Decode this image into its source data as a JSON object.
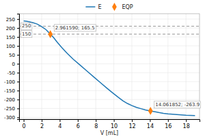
{
  "chart_data": {
    "type": "line",
    "x_label": "V [mL]",
    "xlim": [
      -0.5,
      19.5
    ],
    "ylim": [
      -310,
      280
    ],
    "xticks": [
      0,
      2,
      4,
      6,
      8,
      10,
      12,
      14,
      16,
      18
    ],
    "yticks": [
      -300,
      -250,
      -200,
      -150,
      -100,
      -50,
      0,
      50,
      100,
      150,
      200,
      250
    ],
    "grid": true,
    "legend": "top",
    "series": [
      {
        "name": "E",
        "type": "line",
        "x": [
          0.0,
          0.3,
          0.6,
          1.0,
          1.5,
          2.0,
          2.5,
          2.96159,
          3.3,
          3.7,
          4.2,
          4.8,
          5.5,
          6.2,
          7.0,
          7.8,
          8.5,
          9.2,
          9.8,
          10.5,
          11.0,
          11.5,
          12.0,
          12.5,
          13.0,
          13.5,
          14.061852,
          14.5,
          15.0,
          15.5,
          16.0,
          16.5,
          17.0,
          17.5,
          18.0,
          18.5,
          19.0
        ],
        "values": [
          240,
          238,
          235,
          230,
          222,
          208,
          190,
          165.5,
          148,
          122,
          92,
          60,
          25,
          -5,
          -40,
          -75,
          -105,
          -135,
          -160,
          -188,
          -207,
          -222,
          -234,
          -244,
          -251,
          -258,
          -263.9,
          -268,
          -273,
          -277,
          -280,
          -282,
          -284,
          -286,
          -288,
          -289,
          -290
        ]
      },
      {
        "name": "EQP",
        "type": "scatter",
        "marker": "diamond",
        "x": [
          2.96159,
          14.061852
        ],
        "values": [
          165.5,
          -263.9
        ]
      }
    ],
    "hlines": [
      {
        "value": 210,
        "label": "250",
        "line_style": "dashed"
      },
      {
        "value": 165.5,
        "label": "150",
        "line_style": "dashed"
      }
    ],
    "annotations": [
      {
        "text": "2.961590; 165.5",
        "x": 2.96159,
        "y": 165.5
      },
      {
        "text": "14.061852; -263.9",
        "x": 14.061852,
        "y": -263.9
      }
    ]
  }
}
